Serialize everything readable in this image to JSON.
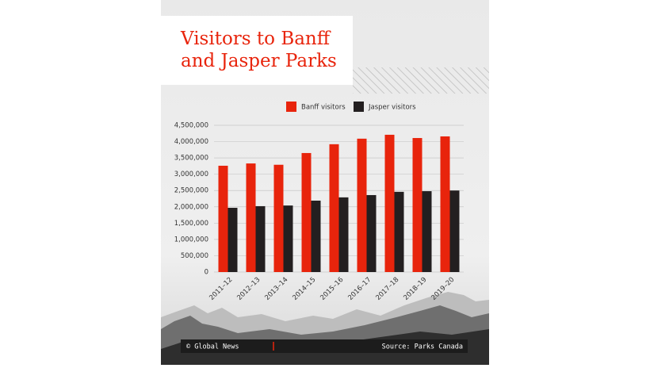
{
  "chart_data": {
    "type": "bar",
    "title": "Visitors to Banff and Jasper Parks",
    "categories": [
      "2011–12",
      "2012–13",
      "2013–14",
      "2014–15",
      "2015–16",
      "2016–17",
      "2017–18",
      "2018–19",
      "2019–20"
    ],
    "series": [
      {
        "name": "Banff visitors",
        "color": "#e8240c",
        "values": [
          3260000,
          3330000,
          3290000,
          3650000,
          3920000,
          4090000,
          4210000,
          4110000,
          4160000
        ]
      },
      {
        "name": "Jasper visitors",
        "color": "#231f20",
        "values": [
          1970000,
          2020000,
          2040000,
          2190000,
          2290000,
          2360000,
          2460000,
          2480000,
          2500000
        ]
      }
    ],
    "ylim": [
      0,
      4500000
    ],
    "yticks": [
      0,
      {
        "value": 500000,
        "label": "500,000"
      },
      {
        "value": 1000000,
        "label": "1,000,000"
      },
      {
        "value": 1500000,
        "label": "1,500,000"
      },
      {
        "value": 2000000,
        "label": "2,000,000"
      },
      {
        "value": 2500000,
        "label": "2,500,000"
      },
      {
        "value": 3000000,
        "label": "3,000,000"
      },
      {
        "value": 3500000,
        "label": "3,500,000"
      },
      {
        "value": 4000000,
        "label": "4,000,000"
      },
      {
        "value": 4500000,
        "label": "4,500,000"
      }
    ],
    "grid": true,
    "legend": "top"
  },
  "footer": {
    "credit": "© Global News",
    "source": "Source: Parks Canada"
  }
}
